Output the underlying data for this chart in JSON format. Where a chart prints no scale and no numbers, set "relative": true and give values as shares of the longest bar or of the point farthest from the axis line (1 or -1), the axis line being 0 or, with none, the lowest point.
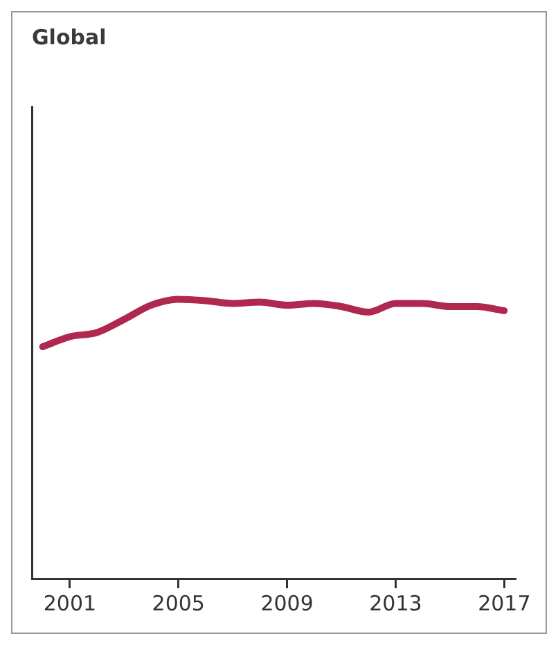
{
  "chart_data": {
    "type": "line",
    "title": "Global",
    "relative": true,
    "x": [
      2000,
      2001,
      2002,
      2003,
      2004,
      2005,
      2006,
      2007,
      2008,
      2009,
      2010,
      2011,
      2012,
      2013,
      2014,
      2015,
      2016,
      2017
    ],
    "series": [
      {
        "color": "#b0284f",
        "values": [
          0.83,
          0.866,
          0.881,
          0.928,
          0.979,
          1,
          0.995,
          0.985,
          0.99,
          0.979,
          0.985,
          0.974,
          0.954,
          0.985,
          0.985,
          0.974,
          0.974,
          0.959
        ]
      }
    ],
    "xlim": [
      1999.6,
      2017.4
    ],
    "xticks": [
      2001,
      2005,
      2009,
      2013,
      2017
    ],
    "grid": false,
    "legend": false,
    "marker": "none",
    "line_style": "solid"
  }
}
